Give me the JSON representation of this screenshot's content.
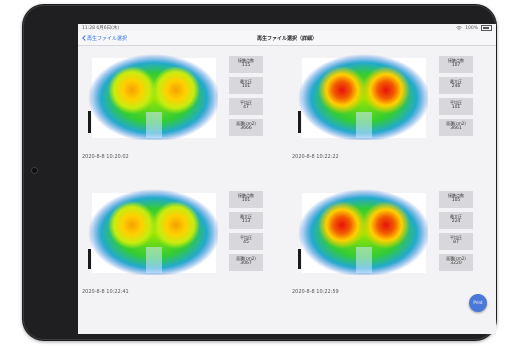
{
  "status_bar": {
    "time": "11:28 6月6日(木)",
    "battery": "100%"
  },
  "nav": {
    "back_label": "再生ファイル選択",
    "title": "再生ファイル選択（詳細）"
  },
  "stat_labels": {
    "contact": "接触点数",
    "max": "最大圧",
    "avg": "平均圧",
    "area": "面積(cm2)"
  },
  "measurements": [
    {
      "timestamp": "2020-8-8 10:20:02",
      "contact": "115",
      "max": "101",
      "avg": "47",
      "area": "3666"
    },
    {
      "timestamp": "2020-8-8 10:22:22",
      "contact": "107",
      "max": "246",
      "avg": "101",
      "area": "3661"
    },
    {
      "timestamp": "2020-8-8 10:22:41",
      "contact": "101",
      "max": "113",
      "avg": "45",
      "area": "3067"
    },
    {
      "timestamp": "2020-8-8 10:22:59",
      "contact": "105",
      "max": "224",
      "avg": "87",
      "area": "3220"
    }
  ],
  "fab": {
    "label": "Print"
  },
  "colors": {
    "accent": "#2d6fe0",
    "fab": "#4a78d8",
    "stat_box": "#d8d8dc"
  }
}
